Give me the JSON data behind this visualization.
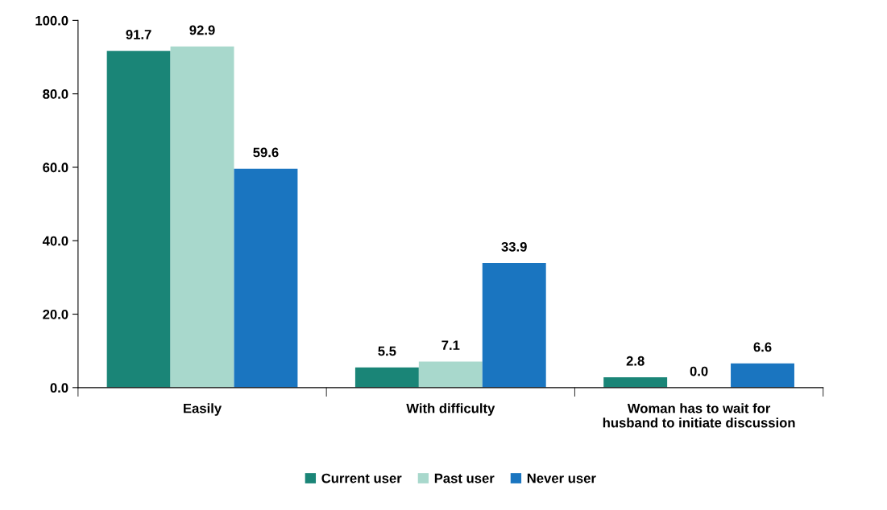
{
  "chart_data": {
    "type": "bar",
    "categories": [
      "Easily",
      "With difficulty",
      "Woman has to wait for\nhusband to initiate discussion"
    ],
    "series": [
      {
        "name": "Current user",
        "color": "#1a8577",
        "values": [
          91.7,
          5.5,
          2.8
        ],
        "value_labels": [
          "91.7",
          "5.5",
          "2.8"
        ]
      },
      {
        "name": "Past user",
        "color": "#a8d8cc",
        "values": [
          92.9,
          7.1,
          0.0
        ],
        "value_labels": [
          "92.9",
          "7.1",
          "0.0"
        ]
      },
      {
        "name": "Never user",
        "color": "#1a75c0",
        "values": [
          59.6,
          33.9,
          6.6
        ],
        "value_labels": [
          "59.6",
          "33.9",
          "6.6"
        ]
      }
    ],
    "ylim": [
      0,
      100
    ],
    "yticks": [
      {
        "value": 0,
        "label": "0.0"
      },
      {
        "value": 20,
        "label": "20.0"
      },
      {
        "value": 40,
        "label": "40.0"
      },
      {
        "value": 60,
        "label": "60.0"
      },
      {
        "value": 80,
        "label": "80.0"
      },
      {
        "value": 100,
        "label": "100.0"
      }
    ],
    "grid": false,
    "legend": "bottom"
  }
}
